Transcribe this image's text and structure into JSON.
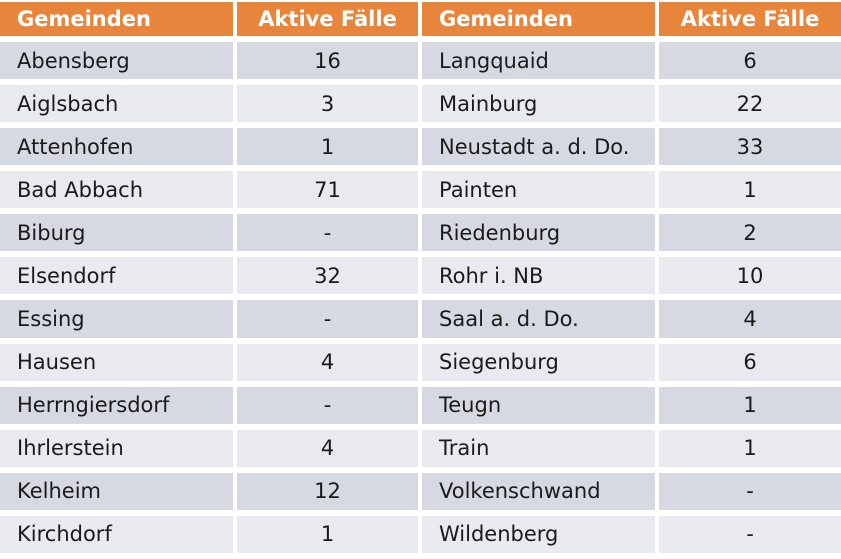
{
  "chart_data": {
    "type": "table",
    "columns": [
      "Gemeinden",
      "Aktive Fälle",
      "Gemeinden",
      "Aktive Fälle"
    ],
    "rows": [
      [
        "Abensberg",
        "16",
        "Langquaid",
        "6"
      ],
      [
        "Aiglsbach",
        "3",
        "Mainburg",
        "22"
      ],
      [
        "Attenhofen",
        "1",
        "Neustadt a. d. Do.",
        "33"
      ],
      [
        "Bad Abbach",
        "71",
        "Painten",
        "1"
      ],
      [
        "Biburg",
        "-",
        "Riedenburg",
        "2"
      ],
      [
        "Elsendorf",
        "32",
        "Rohr i. NB",
        "10"
      ],
      [
        "Essing",
        "-",
        "Saal a. d. Do.",
        "4"
      ],
      [
        "Hausen",
        "4",
        "Siegenburg",
        "6"
      ],
      [
        "Herrngiersdorf",
        "-",
        "Teugn",
        "1"
      ],
      [
        "Ihrlerstein",
        "4",
        "Train",
        "1"
      ],
      [
        "Kelheim",
        "12",
        "Volkenschwand",
        "-"
      ],
      [
        "Kirchdorf",
        "1",
        "Wildenberg",
        "-"
      ]
    ],
    "layout": {
      "banded_rows": true,
      "header_position": "top"
    }
  },
  "colors": {
    "header_bg": "#E8853C",
    "header_text": "#FFFFFF",
    "row_dark": "#D6D9E2",
    "row_light": "#E9EAF0",
    "cell_text": "#1A1A1A",
    "grid_gap": "#FFFFFF"
  }
}
